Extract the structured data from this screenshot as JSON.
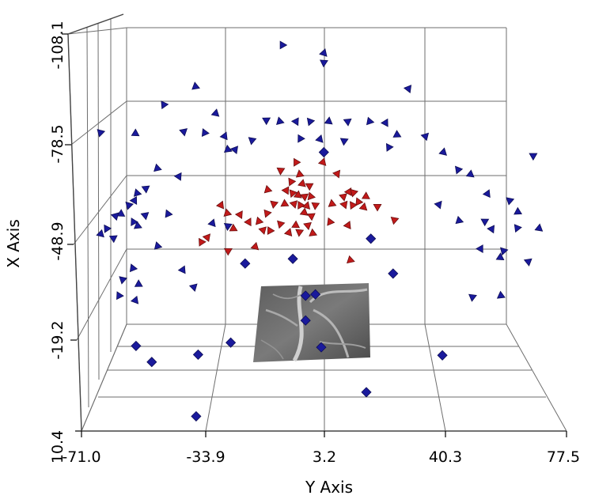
{
  "chart_data": {
    "type": "scatter",
    "title": "",
    "xlabel": "Y Axis",
    "ylabel": "X Axis",
    "x_ticks": [
      "-71.0",
      "-33.9",
      "3.2",
      "40.3",
      "77.5"
    ],
    "y_ticks": [
      "-108.1",
      "-78.5",
      "-48.9",
      "-19.2",
      "10.4"
    ],
    "xlim": [
      -71.0,
      77.5
    ],
    "ylim": [
      10.4,
      -108.1
    ],
    "grid": true,
    "legend": "none",
    "series": [
      {
        "color": "#1a1a9c",
        "marker": "triangle",
        "values": [
          [
            -9.5,
            -104.8
          ],
          [
            3.2,
            -102.4
          ],
          [
            3.2,
            -99.6
          ],
          [
            -36.1,
            -92.4
          ],
          [
            29.1,
            -91.8
          ],
          [
            -45.8,
            -87.0
          ],
          [
            -29.9,
            -84.4
          ],
          [
            -14.4,
            -82.4
          ],
          [
            -10.3,
            -82.0
          ],
          [
            -5.3,
            -82.0
          ],
          [
            -1.0,
            -82.0
          ],
          [
            4.7,
            -82.0
          ],
          [
            10.5,
            -82.0
          ],
          [
            17.2,
            -82.0
          ],
          [
            22.1,
            -81.6
          ],
          [
            -65.2,
            -78.7
          ],
          [
            -54.5,
            -78.4
          ],
          [
            -39.7,
            -79.0
          ],
          [
            -33.3,
            -78.6
          ],
          [
            -27.2,
            -77.6
          ],
          [
            -18.8,
            -76.4
          ],
          [
            25.6,
            -78.0
          ],
          [
            34.3,
            -77.6
          ],
          [
            -4.0,
            -76.9
          ],
          [
            2.0,
            -76.7
          ],
          [
            9.4,
            -76.2
          ],
          [
            -26.2,
            -73.6
          ],
          [
            -24.0,
            -73.6
          ],
          [
            23.1,
            -74.3
          ],
          [
            39.8,
            -72.8
          ],
          [
            67.3,
            -71.8
          ],
          [
            -47.8,
            -68.0
          ],
          [
            -41.2,
            -65.6
          ],
          [
            44.3,
            -67.6
          ],
          [
            48.1,
            -66.2
          ],
          [
            -51.3,
            -62.0
          ],
          [
            -54.0,
            -60.6
          ],
          [
            -54.8,
            -58.4
          ],
          [
            -56.5,
            -57.0
          ],
          [
            -58.9,
            -54.4
          ],
          [
            -51.5,
            -54.0
          ],
          [
            -44.5,
            -54.4
          ],
          [
            53.3,
            -60.4
          ],
          [
            60.1,
            -58.4
          ],
          [
            62.6,
            -55.0
          ],
          [
            -60.6,
            -53.8
          ],
          [
            -55.1,
            -52.0
          ],
          [
            -30.9,
            -51.6
          ],
          [
            -26.2,
            -50.8
          ],
          [
            -53.8,
            -50.8
          ],
          [
            38.4,
            -57.2
          ],
          [
            -63.3,
            -50.0
          ],
          [
            -65.1,
            -48.4
          ],
          [
            52.5,
            -52.2
          ],
          [
            44.6,
            -52.4
          ],
          [
            54.6,
            -49.9
          ],
          [
            62.4,
            -50.2
          ],
          [
            69.1,
            -50.1
          ],
          [
            -61.2,
            -47.2
          ],
          [
            -47.7,
            -44.8
          ],
          [
            51.2,
            -44.0
          ],
          [
            58.2,
            -43.4
          ],
          [
            57.2,
            -41.4
          ],
          [
            65.8,
            -40.2
          ],
          [
            -55.3,
            -38.2
          ],
          [
            -40.0,
            -37.7
          ],
          [
            -58.4,
            -34.8
          ],
          [
            -53.5,
            -33.4
          ],
          [
            -36.6,
            -32.6
          ],
          [
            -59.5,
            -30.0
          ],
          [
            -54.5,
            -28.6
          ],
          [
            48.7,
            -29.6
          ],
          [
            57.4,
            -30.0
          ]
        ]
      },
      {
        "color": "#c21a1a",
        "marker": "triangle",
        "values": [
          [
            -5.3,
            -69.8
          ],
          [
            2.9,
            -69.8
          ],
          [
            -10.0,
            -67.4
          ],
          [
            -4.2,
            -66.2
          ],
          [
            7.3,
            -66.4
          ],
          [
            -6.8,
            -64.0
          ],
          [
            -3.4,
            -63.4
          ],
          [
            -1.2,
            -62.8
          ],
          [
            -14.0,
            -61.6
          ],
          [
            -8.3,
            -61.4
          ],
          [
            -6.4,
            -60.6
          ],
          [
            -4.7,
            -60.0
          ],
          [
            -2.7,
            -59.6
          ],
          [
            -0.8,
            -59.6
          ],
          [
            10.9,
            -61.0
          ],
          [
            12.3,
            -60.8
          ],
          [
            16.1,
            -59.6
          ],
          [
            9.2,
            -59.6
          ],
          [
            13.8,
            -58.0
          ],
          [
            -28.3,
            -57.0
          ],
          [
            -12.1,
            -57.4
          ],
          [
            -8.8,
            -57.4
          ],
          [
            -5.9,
            -57.4
          ],
          [
            -4.0,
            -57.0
          ],
          [
            -2.0,
            -56.8
          ],
          [
            0.6,
            -57.0
          ],
          [
            5.7,
            -57.4
          ],
          [
            9.5,
            -57.2
          ],
          [
            12.0,
            -57.0
          ],
          [
            15.4,
            -56.4
          ],
          [
            19.6,
            -56.6
          ],
          [
            -26.4,
            -54.6
          ],
          [
            -22.5,
            -54.2
          ],
          [
            -14.2,
            -54.6
          ],
          [
            -2.8,
            -54.8
          ],
          [
            -0.6,
            -53.8
          ],
          [
            -16.7,
            -52.2
          ],
          [
            -19.8,
            -52.0
          ],
          [
            -10.1,
            -51.4
          ],
          [
            -5.4,
            -51.0
          ],
          [
            -1.7,
            -51.0
          ],
          [
            5.1,
            -52.0
          ],
          [
            10.6,
            -51.0
          ],
          [
            24.8,
            -52.6
          ],
          [
            -24.5,
            -50.0
          ],
          [
            -15.4,
            -49.6
          ],
          [
            -13.3,
            -49.4
          ],
          [
            -7.5,
            -48.8
          ],
          [
            -4.3,
            -49.0
          ],
          [
            -0.2,
            -48.6
          ],
          [
            -32.5,
            -47.4
          ],
          [
            -34.3,
            -46.0
          ],
          [
            -17.8,
            -44.6
          ],
          [
            -26.1,
            -43.4
          ],
          [
            11.3,
            -40.6
          ]
        ]
      },
      {
        "color": "#1a1a9c",
        "marker": "diamond",
        "values": [
          [
            3.2,
            -72.8
          ],
          [
            17.6,
            -47.0
          ],
          [
            -20.9,
            -39.6
          ],
          [
            -6.3,
            -41.0
          ],
          [
            24.4,
            -36.6
          ],
          [
            -2.4,
            -30.0
          ],
          [
            0.6,
            -30.4
          ],
          [
            -2.4,
            -22.6
          ],
          [
            -54.3,
            -15.0
          ],
          [
            -25.3,
            -16.0
          ],
          [
            -35.3,
            -12.4
          ],
          [
            2.4,
            -14.6
          ],
          [
            -49.5,
            -10.2
          ],
          [
            39.5,
            -12.2
          ],
          [
            16.2,
            -1.2
          ],
          [
            -35.9,
            6.0
          ]
        ]
      }
    ],
    "surface_image": "grayscale fundus vessel image patch"
  }
}
